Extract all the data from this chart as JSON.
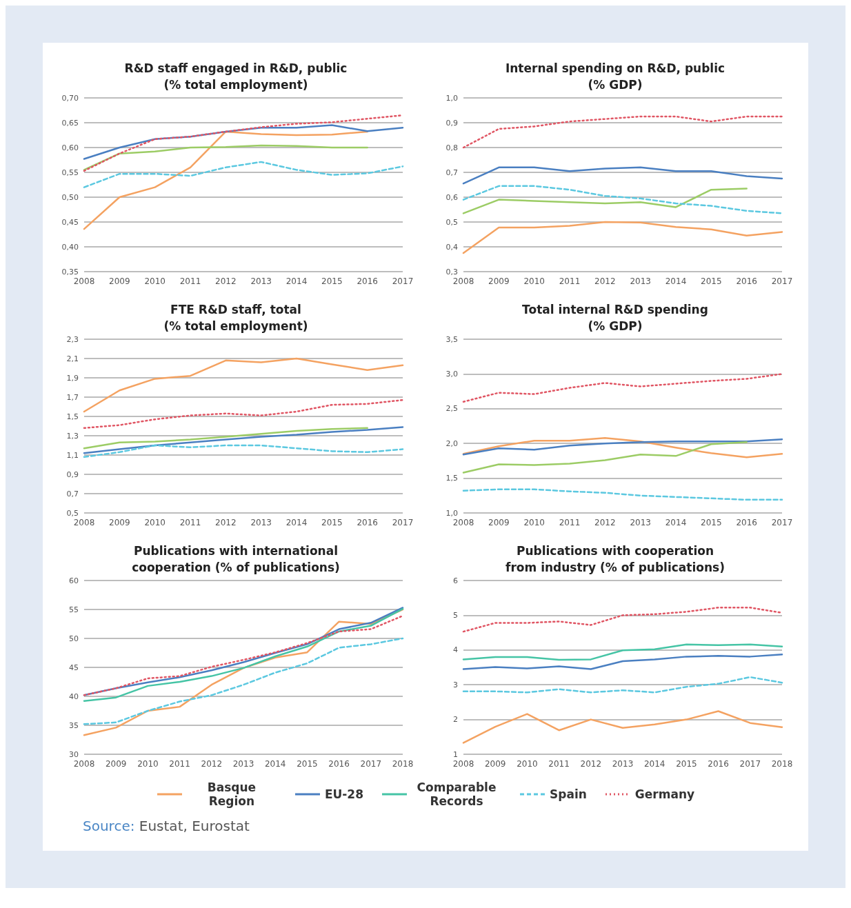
{
  "chart_data": [
    {
      "type": "line",
      "title": "R&D staff engaged in R&D, public\n(% total employment)",
      "categories": [
        "2008",
        "2009",
        "2010",
        "2011",
        "2012",
        "2013",
        "2014",
        "2015",
        "2016",
        "2017"
      ],
      "ylim": [
        0.35,
        0.7
      ],
      "yticks": [
        {
          "value": 0.35,
          "label": "0,35"
        },
        {
          "value": 0.4,
          "label": "0,40"
        },
        {
          "value": 0.45,
          "label": "0,45"
        },
        {
          "value": 0.5,
          "label": "0,50"
        },
        {
          "value": 0.55,
          "label": "0,55"
        },
        {
          "value": 0.6,
          "label": "0,60"
        },
        {
          "value": 0.65,
          "label": "0,65"
        },
        {
          "value": 0.7,
          "label": "0,70"
        }
      ],
      "grid": "y",
      "series": [
        {
          "color": "#f4a261",
          "values": [
            0.436,
            0.5,
            0.52,
            0.56,
            0.632,
            0.627,
            0.625,
            0.626,
            0.632,
            null
          ]
        },
        {
          "color": "#4a7fc1",
          "values": [
            0.577,
            0.6,
            0.617,
            0.622,
            0.632,
            0.64,
            0.64,
            0.645,
            0.633,
            0.64
          ]
        },
        {
          "color": "#9ccc65",
          "values": [
            0.555,
            0.588,
            0.592,
            0.6,
            0.601,
            0.604,
            0.603,
            0.6,
            0.6,
            null
          ]
        },
        {
          "color": "#5bc8e0",
          "line_style": "dashed",
          "values": [
            0.52,
            0.547,
            0.547,
            0.543,
            0.56,
            0.571,
            0.555,
            0.545,
            0.548,
            0.562
          ]
        },
        {
          "color": "#e05563",
          "line_style": "dotted",
          "values": [
            0.553,
            0.588,
            0.617,
            0.622,
            0.632,
            0.641,
            0.648,
            0.651,
            0.658,
            0.665
          ]
        }
      ]
    },
    {
      "type": "line",
      "title": "Internal spending on R&D, public\n(% GDP)",
      "categories": [
        "2008",
        "2009",
        "2010",
        "2011",
        "2012",
        "2013",
        "2014",
        "2015",
        "2016",
        "2017"
      ],
      "ylim": [
        0.3,
        1.0
      ],
      "yticks": [
        {
          "value": 0.3,
          "label": "0,3"
        },
        {
          "value": 0.4,
          "label": "0,4"
        },
        {
          "value": 0.5,
          "label": "0,5"
        },
        {
          "value": 0.6,
          "label": "0,6"
        },
        {
          "value": 0.7,
          "label": "0,7"
        },
        {
          "value": 0.8,
          "label": "0,8"
        },
        {
          "value": 0.9,
          "label": "0,9"
        },
        {
          "value": 1.0,
          "label": "1,0"
        }
      ],
      "grid": "y",
      "series": [
        {
          "color": "#f4a261",
          "values": [
            0.375,
            0.478,
            0.478,
            0.485,
            0.5,
            0.498,
            0.48,
            0.47,
            0.445,
            0.46
          ]
        },
        {
          "color": "#4a7fc1",
          "values": [
            0.655,
            0.72,
            0.72,
            0.705,
            0.715,
            0.72,
            0.705,
            0.705,
            0.685,
            0.675
          ]
        },
        {
          "color": "#9ccc65",
          "values": [
            0.535,
            0.59,
            0.585,
            0.58,
            0.575,
            0.58,
            0.56,
            0.63,
            0.635,
            null
          ]
        },
        {
          "color": "#5bc8e0",
          "line_style": "dashed",
          "values": [
            0.59,
            0.645,
            0.645,
            0.63,
            0.605,
            0.595,
            0.575,
            0.565,
            0.545,
            0.535
          ]
        },
        {
          "color": "#e05563",
          "line_style": "dotted",
          "values": [
            0.8,
            0.875,
            0.885,
            0.905,
            0.915,
            0.925,
            0.925,
            0.905,
            0.925,
            0.925
          ]
        }
      ]
    },
    {
      "type": "line",
      "title": "FTE R&D staff, total\n(% total employment)",
      "categories": [
        "2008",
        "2009",
        "2010",
        "2011",
        "2012",
        "2013",
        "2014",
        "2015",
        "2016",
        "2017"
      ],
      "ylim": [
        0.5,
        2.3
      ],
      "yticks": [
        {
          "value": 0.5,
          "label": "0,5"
        },
        {
          "value": 0.7,
          "label": "0,7"
        },
        {
          "value": 0.9,
          "label": "0,9"
        },
        {
          "value": 1.1,
          "label": "1,1"
        },
        {
          "value": 1.3,
          "label": "1,3"
        },
        {
          "value": 1.5,
          "label": "1,5"
        },
        {
          "value": 1.7,
          "label": "1,7"
        },
        {
          "value": 1.9,
          "label": "1,9"
        },
        {
          "value": 2.1,
          "label": "2,1"
        },
        {
          "value": 2.3,
          "label": "2,3"
        }
      ],
      "grid": "y",
      "series": [
        {
          "color": "#f4a261",
          "values": [
            1.55,
            1.77,
            1.89,
            1.92,
            2.08,
            2.06,
            2.1,
            2.04,
            1.98,
            2.03
          ]
        },
        {
          "color": "#4a7fc1",
          "values": [
            1.12,
            1.16,
            1.2,
            1.23,
            1.26,
            1.29,
            1.31,
            1.34,
            1.36,
            1.39
          ]
        },
        {
          "color": "#9ccc65",
          "values": [
            1.17,
            1.23,
            1.24,
            1.26,
            1.29,
            1.32,
            1.35,
            1.37,
            1.38,
            null
          ]
        },
        {
          "color": "#5bc8e0",
          "line_style": "dashed",
          "values": [
            1.08,
            1.13,
            1.2,
            1.18,
            1.2,
            1.2,
            1.17,
            1.14,
            1.13,
            1.16
          ]
        },
        {
          "color": "#e05563",
          "line_style": "dotted",
          "values": [
            1.38,
            1.41,
            1.47,
            1.51,
            1.53,
            1.51,
            1.55,
            1.62,
            1.63,
            1.67
          ]
        }
      ]
    },
    {
      "type": "line",
      "title": "Total internal R&D spending\n(% GDP)",
      "categories": [
        "2008",
        "2009",
        "2010",
        "2011",
        "2012",
        "2013",
        "2014",
        "2015",
        "2016",
        "2017"
      ],
      "ylim": [
        1.0,
        3.5
      ],
      "yticks": [
        {
          "value": 1.0,
          "label": "1,0"
        },
        {
          "value": 1.5,
          "label": "1,5"
        },
        {
          "value": 2.0,
          "label": "2,0"
        },
        {
          "value": 2.5,
          "label": "2,5"
        },
        {
          "value": 3.0,
          "label": "3,0"
        },
        {
          "value": 3.5,
          "label": "3,5"
        }
      ],
      "grid": "y",
      "series": [
        {
          "color": "#f4a261",
          "values": [
            1.85,
            1.96,
            2.04,
            2.04,
            2.08,
            2.03,
            1.94,
            1.86,
            1.8,
            1.85
          ]
        },
        {
          "color": "#4a7fc1",
          "values": [
            1.84,
            1.93,
            1.91,
            1.97,
            2.0,
            2.02,
            2.03,
            2.03,
            2.03,
            2.06
          ]
        },
        {
          "color": "#9ccc65",
          "values": [
            1.58,
            1.7,
            1.69,
            1.71,
            1.76,
            1.84,
            1.82,
            1.99,
            2.02,
            null
          ]
        },
        {
          "color": "#5bc8e0",
          "line_style": "dashed",
          "values": [
            1.32,
            1.34,
            1.34,
            1.31,
            1.29,
            1.25,
            1.23,
            1.21,
            1.19,
            1.19
          ]
        },
        {
          "color": "#e05563",
          "line_style": "dotted",
          "values": [
            2.6,
            2.73,
            2.71,
            2.8,
            2.87,
            2.82,
            2.86,
            2.9,
            2.93,
            3.0
          ]
        }
      ]
    },
    {
      "type": "line",
      "title": "Publications with international\ncooperation (% of publications)",
      "categories": [
        "2008",
        "2009",
        "2010",
        "2011",
        "2012",
        "2013",
        "2014",
        "2015",
        "2016",
        "2017",
        "2018"
      ],
      "ylim": [
        30,
        60
      ],
      "yticks": [
        30,
        35,
        40,
        45,
        50,
        55,
        60
      ],
      "grid": "y",
      "series": [
        {
          "color": "#f4a261",
          "values": [
            33.3,
            34.6,
            37.5,
            38.2,
            42.0,
            44.9,
            46.7,
            47.6,
            52.9,
            52.5,
            55.0
          ]
        },
        {
          "color": "#4a7fc1",
          "values": [
            40.2,
            41.4,
            42.4,
            43.3,
            44.5,
            45.9,
            47.5,
            49.0,
            51.6,
            52.7,
            55.3
          ]
        },
        {
          "color": "#45c4a5",
          "values": [
            39.2,
            39.8,
            41.8,
            42.5,
            43.5,
            44.9,
            46.9,
            48.6,
            51.2,
            52.2,
            55.1
          ]
        },
        {
          "color": "#5bc8e0",
          "line_style": "dashed",
          "values": [
            35.2,
            35.5,
            37.5,
            39.1,
            40.2,
            42.0,
            44.1,
            45.7,
            48.4,
            49.0,
            50.0
          ]
        },
        {
          "color": "#e05563",
          "line_style": "dotted",
          "values": [
            40.2,
            41.4,
            43.1,
            43.5,
            45.1,
            46.3,
            47.6,
            49.2,
            51.2,
            51.6,
            53.9
          ]
        }
      ]
    },
    {
      "type": "line",
      "title": "Publications with cooperation\nfrom industry (% of publications)",
      "categories": [
        "2008",
        "2009",
        "2010",
        "2011",
        "2012",
        "2013",
        "2014",
        "2015",
        "2016",
        "2017",
        "2018"
      ],
      "ylim": [
        1,
        6
      ],
      "yticks": [
        1,
        2,
        3,
        4,
        5,
        6
      ],
      "grid": "y",
      "legend": "bottom",
      "annotations": [
        "Source: Eustat, Eurostat"
      ],
      "series": [
        {
          "name": "Basque Region",
          "color": "#f4a261",
          "values": [
            1.33,
            1.79,
            2.16,
            1.69,
            2.0,
            1.76,
            1.86,
            2.0,
            2.24,
            1.9,
            1.78
          ]
        },
        {
          "name": "EU-28",
          "color": "#4a7fc1",
          "values": [
            3.45,
            3.51,
            3.47,
            3.53,
            3.45,
            3.68,
            3.73,
            3.81,
            3.83,
            3.81,
            3.87
          ]
        },
        {
          "name": "Comparable Records",
          "color": "#45c4a5",
          "values": [
            3.73,
            3.8,
            3.8,
            3.72,
            3.73,
            3.99,
            4.02,
            4.16,
            4.14,
            4.16,
            4.1
          ]
        },
        {
          "name": "Spain",
          "color": "#5bc8e0",
          "line_style": "dashed",
          "values": [
            2.81,
            2.81,
            2.78,
            2.87,
            2.78,
            2.84,
            2.78,
            2.94,
            3.03,
            3.22,
            3.06
          ]
        },
        {
          "name": "Germany",
          "color": "#e05563",
          "line_style": "dotted",
          "values": [
            4.53,
            4.78,
            4.78,
            4.82,
            4.72,
            5.0,
            5.03,
            5.1,
            5.22,
            5.22,
            5.07
          ]
        }
      ]
    }
  ]
}
